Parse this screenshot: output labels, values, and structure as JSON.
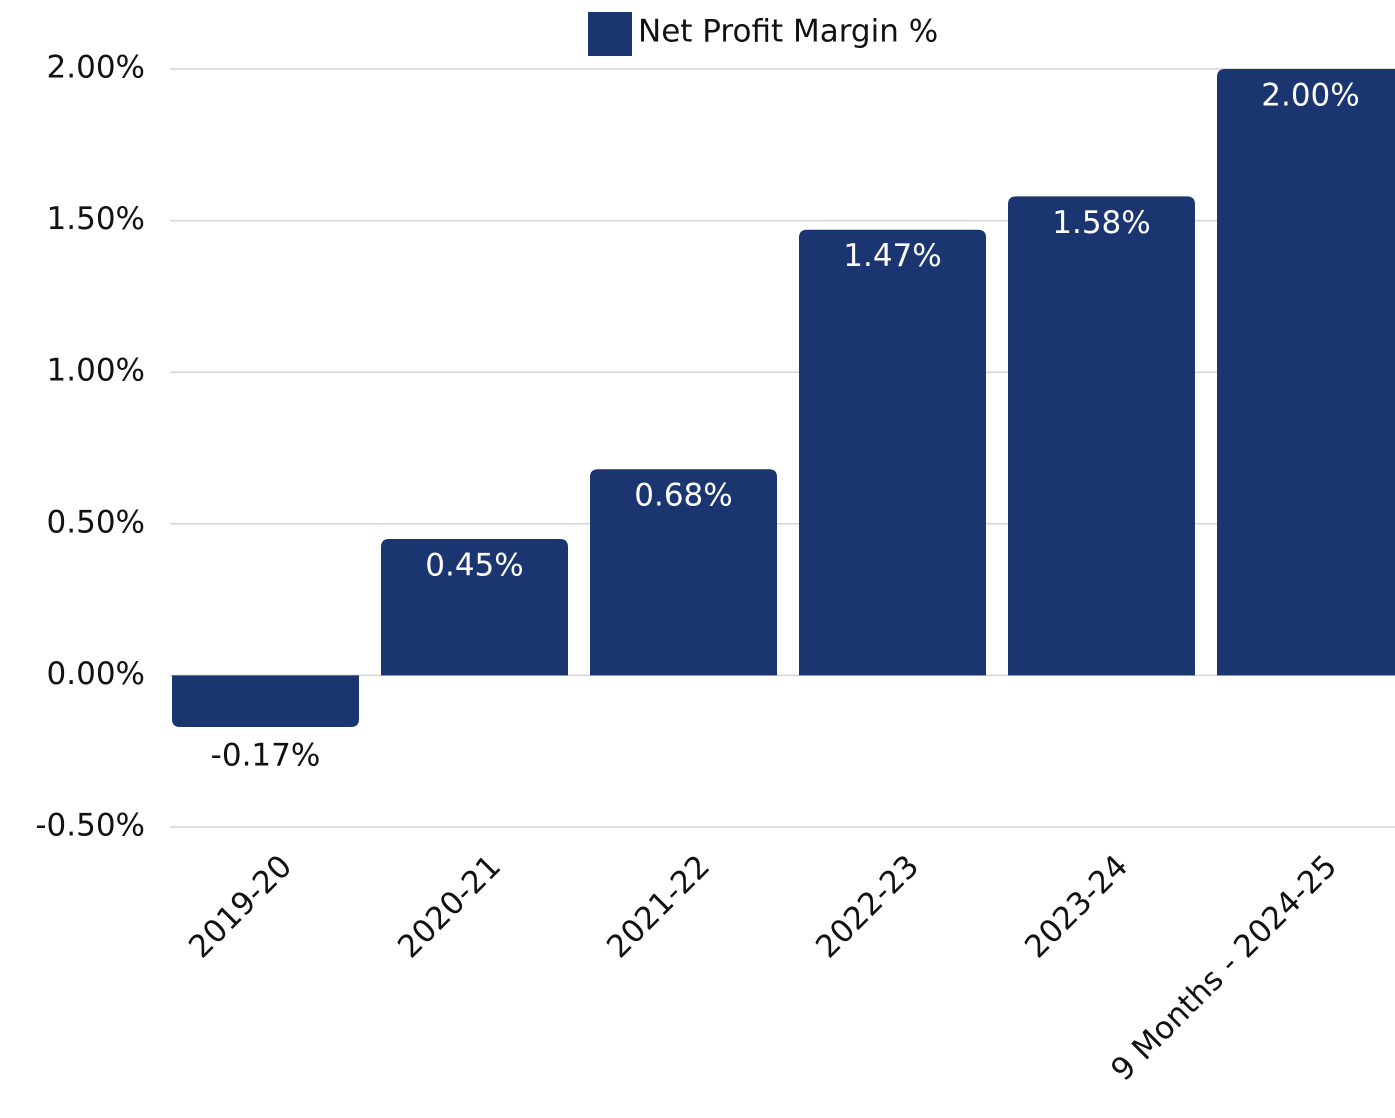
{
  "chart_data": {
    "type": "bar",
    "categories": [
      "2019-20",
      "2020-21",
      "2021-22",
      "2022-23",
      "2023-24",
      "9 Months - 2024-25"
    ],
    "series": [
      {
        "name": "Net Profit Margin %",
        "color": "#1b3571",
        "values": [
          -0.17,
          0.45,
          0.68,
          1.47,
          1.58,
          2.0
        ],
        "value_labels": [
          "-0.17%",
          "0.45%",
          "0.68%",
          "1.47%",
          "1.58%",
          "2.00%"
        ]
      }
    ],
    "ylim": [
      -0.5,
      2
    ],
    "yticks": [
      {
        "value": -0.5,
        "label": "-0.50%"
      },
      {
        "value": 0,
        "label": "0.00%"
      },
      {
        "value": 0.5,
        "label": "0.50%"
      },
      {
        "value": 1,
        "label": "1.00%"
      },
      {
        "value": 1.5,
        "label": "1.50%"
      },
      {
        "value": 2,
        "label": "2.00%"
      }
    ],
    "grid": true,
    "legend": "top"
  }
}
